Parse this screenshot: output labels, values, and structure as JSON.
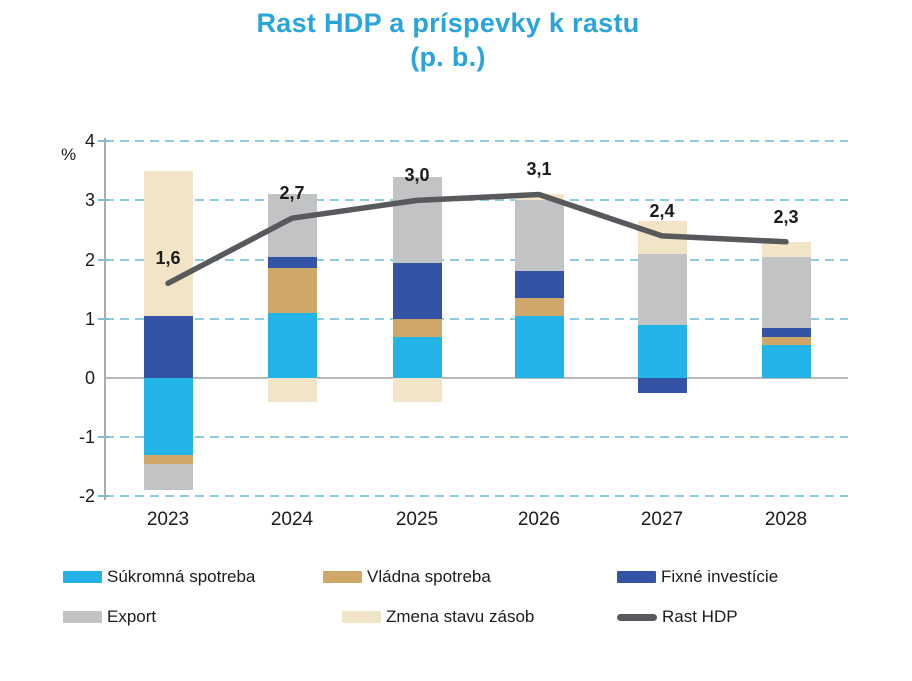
{
  "title": {
    "line1": "Rast HDP a príspevky k rastu",
    "line2": "(p. b.)"
  },
  "axis": {
    "unit_label": "%",
    "y_tick_labels": [
      "4",
      "3",
      "2",
      "1",
      "0",
      "-1",
      "-2"
    ],
    "y_tick_values": [
      4,
      3,
      2,
      1,
      0,
      -1,
      -2
    ],
    "ylim": [
      -2,
      4
    ],
    "grid": "dashed horizontal lines at 4,3,2,1,-1,-2; solid line at 0"
  },
  "chart_data": {
    "type": "bar",
    "subtype": "stacked-bars-with-line-overlay",
    "title": "Rast HDP a príspevky k rastu (p. b.)",
    "xlabel": "",
    "ylabel": "%",
    "ylim": [
      -2,
      4
    ],
    "legend_position": "bottom",
    "categories": [
      "2023",
      "2024",
      "2025",
      "2026",
      "2027",
      "2028"
    ],
    "series": [
      {
        "key": "sukromna-spotreba",
        "name": "Súkromná spotreba",
        "color_key": "cyan",
        "values": [
          -1.3,
          1.1,
          0.7,
          1.05,
          0.9,
          0.55
        ]
      },
      {
        "key": "vladna-spotreba",
        "name": "Vládna spotreba",
        "color_key": "tan",
        "values": [
          -0.15,
          0.75,
          0.3,
          0.3,
          0.0,
          0.15
        ]
      },
      {
        "key": "fixne-investicie",
        "name": "Fixné investície",
        "color_key": "blue",
        "values": [
          1.05,
          0.2,
          0.95,
          0.45,
          -0.25,
          0.15
        ]
      },
      {
        "key": "export",
        "name": "Export",
        "color_key": "gray",
        "values": [
          -0.45,
          1.05,
          1.45,
          1.2,
          1.2,
          1.2
        ]
      },
      {
        "key": "zmena-stavu-zasob",
        "name": "Zmena stavu zásob",
        "color_key": "cream",
        "values": [
          2.45,
          -0.4,
          -0.4,
          0.1,
          0.55,
          0.25
        ]
      }
    ],
    "line": {
      "key": "rast-hdp",
      "name": "Rast HDP",
      "color_key": "line",
      "values": [
        1.6,
        2.7,
        3.0,
        3.1,
        2.4,
        2.3
      ],
      "labels": [
        "1,6",
        "2,7",
        "3,0",
        "3,1",
        "2,4",
        "2,3"
      ]
    }
  },
  "legend": {
    "items": [
      {
        "label": "Súkromná spotreba",
        "swatch": "rect",
        "color_key": "cyan"
      },
      {
        "label": "Vládna spotreba",
        "swatch": "rect",
        "color_key": "tan"
      },
      {
        "label": "Fixné investície",
        "swatch": "rect",
        "color_key": "blue"
      },
      {
        "label": "Export",
        "swatch": "rect",
        "color_key": "gray"
      },
      {
        "label": "Zmena stavu zásob",
        "swatch": "rect",
        "color_key": "cream"
      },
      {
        "label": "Rast HDP",
        "swatch": "line",
        "color_key": "line"
      }
    ]
  },
  "colors": {
    "title": "#29a5da",
    "cyan": "#24b3e6",
    "tan": "#cfa768",
    "blue": "#3353a4",
    "gray": "#c2c3c5",
    "cream": "#f2e4c6",
    "line": "#58595c",
    "grid_dash": "#8ecddf",
    "tick": "#7fbed2",
    "axis": "#ababad",
    "zero_line": "#b7b8ba",
    "text": "#1c1c1c"
  }
}
